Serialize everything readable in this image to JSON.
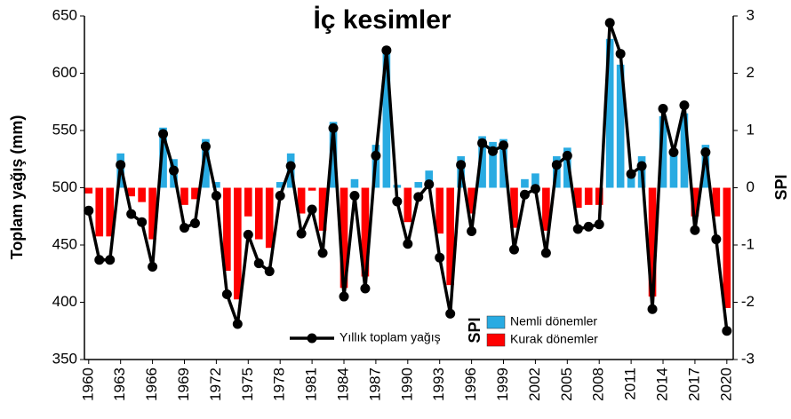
{
  "chart_data": {
    "type": "bar_line",
    "title": "İç kesimler",
    "y_label": "Toplam yağış (mm)",
    "y2_label": "SPI",
    "x": [
      1960,
      1961,
      1962,
      1963,
      1964,
      1965,
      1966,
      1967,
      1968,
      1969,
      1970,
      1971,
      1972,
      1973,
      1974,
      1975,
      1976,
      1977,
      1978,
      1979,
      1980,
      1981,
      1982,
      1983,
      1984,
      1985,
      1986,
      1987,
      1988,
      1989,
      1990,
      1991,
      1992,
      1993,
      1994,
      1995,
      1996,
      1997,
      1998,
      1999,
      2000,
      2001,
      2002,
      2003,
      2004,
      2005,
      2006,
      2007,
      2008,
      2009,
      2010,
      2011,
      2012,
      2013,
      2014,
      2015,
      2016,
      2017,
      2018,
      2019,
      2020
    ],
    "xlim": [
      1959.6,
      2020.6
    ],
    "xticks": [
      1960,
      1963,
      1966,
      1969,
      1972,
      1975,
      1978,
      1981,
      1984,
      1987,
      1990,
      1993,
      1996,
      1999,
      2002,
      2005,
      2008,
      2011,
      2014,
      2017,
      2020
    ],
    "ylim": [
      350,
      650
    ],
    "yticks": [
      350,
      400,
      450,
      500,
      550,
      600,
      650
    ],
    "y2lim": [
      -3,
      3
    ],
    "y2ticks": [
      -3,
      -2,
      -1,
      0,
      1,
      2,
      3
    ],
    "series": [
      {
        "name": "SPI",
        "type": "bar",
        "axis": "y2",
        "positive_color": "#29abe2",
        "negative_color": "#ff0000",
        "values": [
          -0.1,
          -0.85,
          -0.85,
          0.6,
          -0.15,
          -0.25,
          -0.9,
          1.05,
          0.5,
          -0.3,
          -0.2,
          0.85,
          0.1,
          -1.45,
          -1.95,
          -0.5,
          -0.9,
          -1.05,
          0.1,
          0.6,
          -0.45,
          -0.05,
          -0.75,
          1.15,
          -1.75,
          0.15,
          -1.55,
          0.75,
          2.4,
          0.05,
          -0.6,
          0.1,
          0.3,
          -0.8,
          -1.7,
          0.55,
          -0.45,
          0.9,
          0.8,
          0.85,
          -0.7,
          0.15,
          0.25,
          -0.75,
          0.55,
          0.7,
          -0.35,
          -0.3,
          -0.3,
          2.6,
          2.15,
          0.3,
          0.55,
          -1.9,
          1.25,
          0.65,
          1.3,
          -0.5,
          0.75,
          -0.5,
          -2.1
        ]
      },
      {
        "name": "Yıllık toplam yağış",
        "type": "line",
        "color": "#000000",
        "values": [
          480,
          437,
          437,
          520,
          477,
          470,
          431,
          547,
          515,
          465,
          469,
          536,
          493,
          407,
          381,
          459,
          434,
          427,
          493,
          519,
          460,
          481,
          443,
          552,
          405,
          493,
          412,
          528,
          620,
          488,
          451,
          492,
          503,
          439,
          390,
          520,
          462,
          539,
          532,
          537,
          446,
          494,
          499,
          443,
          520,
          528,
          464,
          466,
          468,
          644,
          617,
          512,
          519,
          394,
          569,
          531,
          572,
          463,
          531,
          455,
          375
        ]
      }
    ],
    "bar_legend": [
      {
        "name": "Nemli dönemler",
        "color": "#29abe2"
      },
      {
        "name": "Kurak dönemler",
        "color": "#ff0000"
      }
    ]
  }
}
